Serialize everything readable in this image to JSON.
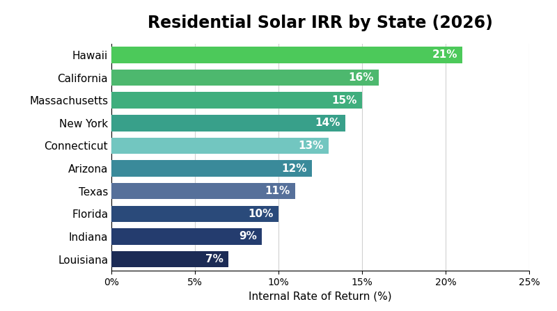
{
  "chart_data": {
    "type": "bar",
    "orientation": "horizontal",
    "title": "Residential Solar IRR by State (2026)",
    "x_label": "Internal Rate of Return (%)",
    "categories": [
      "Hawaii",
      "California",
      "Massachusetts",
      "New York",
      "Connecticut",
      "Arizona",
      "Texas",
      "Florida",
      "Indiana",
      "Louisiana"
    ],
    "values": [
      21,
      16,
      15,
      14,
      13,
      12,
      11,
      10,
      9,
      7
    ],
    "value_labels": [
      "21%",
      "16%",
      "15%",
      "14%",
      "13%",
      "12%",
      "11%",
      "10%",
      "9%",
      "7%"
    ],
    "colors": [
      "#4cc95a",
      "#4db86e",
      "#3fae7d",
      "#38a08a",
      "#72c6c0",
      "#3a8a9a",
      "#56709a",
      "#2a4a7a",
      "#243c6e",
      "#1c2b55"
    ],
    "xlim": [
      0,
      25
    ],
    "xticks": [
      {
        "value": 0,
        "label": "0%"
      },
      {
        "value": 5,
        "label": "5%"
      },
      {
        "value": 10,
        "label": "10%"
      },
      {
        "value": 15,
        "label": "15%"
      },
      {
        "value": 20,
        "label": "20%"
      },
      {
        "value": 25,
        "label": "25%"
      }
    ],
    "grid": true,
    "data_labels": true
  }
}
